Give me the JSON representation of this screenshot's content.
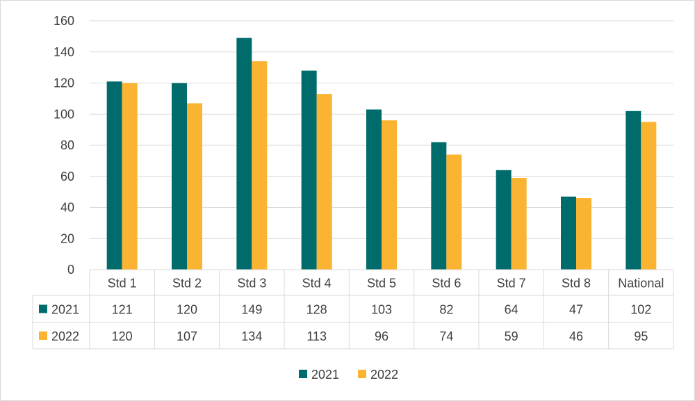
{
  "chart_data": {
    "type": "bar",
    "categories": [
      "Std 1",
      "Std 2",
      "Std 3",
      "Std 4",
      "Std 5",
      "Std 6",
      "Std 7",
      "Std 8",
      "National"
    ],
    "series": [
      {
        "name": "2021",
        "values": [
          121,
          120,
          149,
          128,
          103,
          82,
          64,
          47,
          102
        ],
        "color": "#006b6b"
      },
      {
        "name": "2022",
        "values": [
          120,
          107,
          134,
          113,
          96,
          74,
          59,
          46,
          95
        ],
        "color": "#fbb332"
      }
    ],
    "yticks": [
      "0",
      "20",
      "40",
      "60",
      "80",
      "100",
      "120",
      "140",
      "160"
    ],
    "ylim": [
      0,
      160
    ],
    "grid": true,
    "legend": "bottom",
    "data_table": true,
    "title": "",
    "xlabel": "",
    "ylabel": ""
  }
}
